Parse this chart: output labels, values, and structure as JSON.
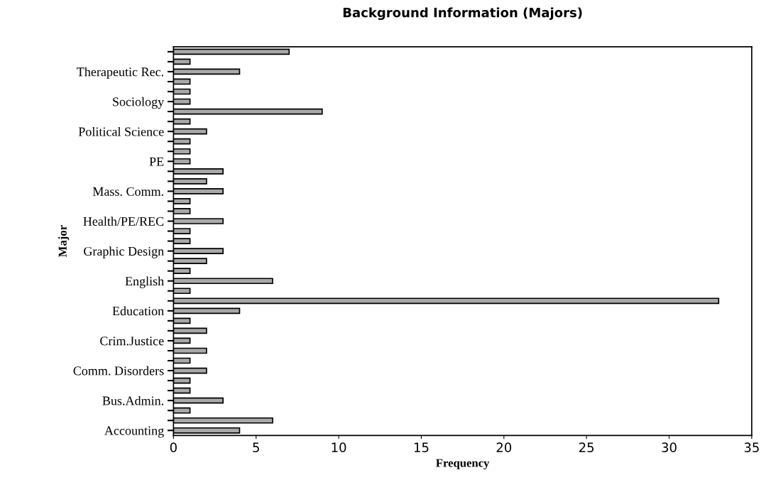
{
  "chart_data": {
    "type": "bar",
    "orientation": "horizontal",
    "title": "Background Information (Majors)",
    "xlabel": "Frequency",
    "ylabel": "Major",
    "categories": [
      null,
      null,
      "Therapeutic Rec.",
      null,
      null,
      "Sociology",
      null,
      null,
      "Political Science",
      null,
      null,
      "PE",
      null,
      null,
      "Mass. Comm.",
      null,
      null,
      "Health/PE/REC",
      null,
      null,
      "Graphic Design",
      null,
      null,
      "English",
      null,
      null,
      "Education",
      null,
      null,
      "Crim.Justice",
      null,
      null,
      "Comm. Disorders",
      null,
      null,
      "Bus.Admin.",
      null,
      null,
      "Accounting"
    ],
    "values": [
      7,
      1,
      4,
      1,
      1,
      1,
      9,
      1,
      2,
      1,
      1,
      1,
      3,
      2,
      3,
      1,
      1,
      3,
      1,
      1,
      3,
      2,
      1,
      6,
      1,
      33,
      4,
      1,
      2,
      1,
      2,
      1,
      2,
      1,
      1,
      3,
      1,
      6,
      4
    ],
    "color": "#a8a8a8",
    "xlim": [
      0,
      35
    ],
    "xticks": [
      0,
      5,
      10,
      15,
      20,
      25,
      30,
      35
    ],
    "grid": false,
    "legend": false
  }
}
